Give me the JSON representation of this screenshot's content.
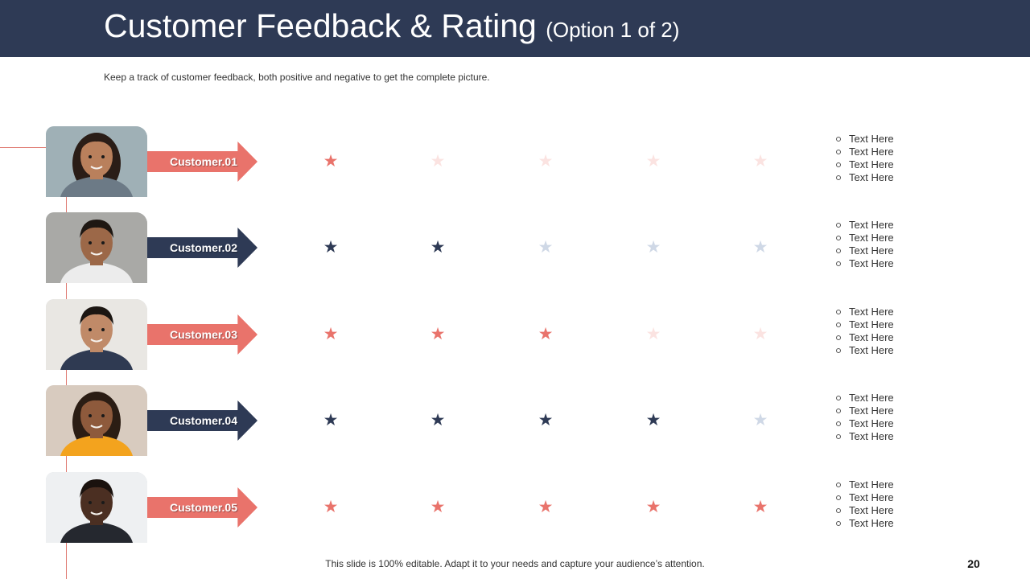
{
  "title": "Customer Feedback & Rating",
  "title_option": "(Option 1 of 2)",
  "subtitle": "Keep a track of customer feedback, both positive and negative to get the complete picture.",
  "footer_note": "This slide is 100% editable. Adapt it to your needs and capture your audience’s attention.",
  "page_number": "20",
  "colors": {
    "header": "#2e3a55",
    "coral": "#e9736b",
    "coral_light": "#fbe3e1",
    "navy": "#2e3a55",
    "navy_light": "#cfd8e6"
  },
  "star_icon": "star-icon",
  "max_rating": 5,
  "customers": [
    {
      "label": "Customer.01",
      "rating": 1,
      "theme": "coral",
      "notes": [
        "Text Here",
        "Text Here",
        "Text Here",
        "Text Here"
      ]
    },
    {
      "label": "Customer.02",
      "rating": 2,
      "theme": "navy",
      "notes": [
        "Text Here",
        "Text Here",
        "Text Here",
        "Text Here"
      ]
    },
    {
      "label": "Customer.03",
      "rating": 3,
      "theme": "coral",
      "notes": [
        "Text Here",
        "Text Here",
        "Text Here",
        "Text Here"
      ]
    },
    {
      "label": "Customer.04",
      "rating": 4,
      "theme": "navy",
      "notes": [
        "Text Here",
        "Text Here",
        "Text Here",
        "Text Here"
      ]
    },
    {
      "label": "Customer.05",
      "rating": 5,
      "theme": "coral",
      "notes": [
        "Text Here",
        "Text Here",
        "Text Here",
        "Text Here"
      ]
    }
  ]
}
